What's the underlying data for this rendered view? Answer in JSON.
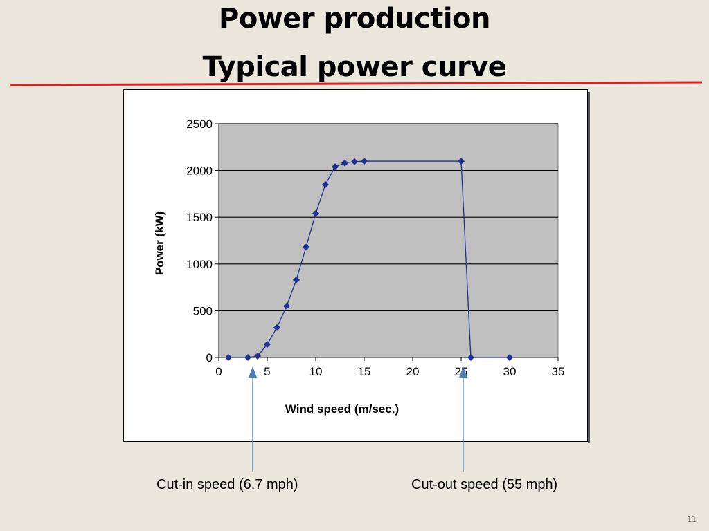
{
  "slide": {
    "title_line1": "Power production",
    "title_line2": "Typical power curve",
    "page_number": "11",
    "accent_color": "#e02020"
  },
  "callouts": {
    "cut_in": "Cut-in speed (6.7 mph)",
    "cut_out": "Cut-out speed (55 mph)",
    "arrow_color": "#4f81bd"
  },
  "chart_data": {
    "type": "line",
    "title": "",
    "xlabel": "Wind speed (m/sec.)",
    "ylabel": "Power (kW)",
    "xlim": [
      0,
      35
    ],
    "ylim": [
      0,
      2500
    ],
    "xticks": [
      0,
      5,
      10,
      15,
      20,
      25,
      30,
      35
    ],
    "yticks": [
      0,
      500,
      1000,
      1500,
      2000,
      2500
    ],
    "grid": "horizontal",
    "plot_background": "#c0c0c0",
    "series": [
      {
        "color": "#1f2f8f",
        "marker": "diamond",
        "x": [
          1,
          3,
          4,
          5,
          6,
          7,
          8,
          9,
          10,
          11,
          12,
          13,
          14,
          15,
          25,
          26,
          30
        ],
        "y": [
          0,
          0,
          15,
          140,
          320,
          550,
          830,
          1180,
          1540,
          1850,
          2040,
          2080,
          2095,
          2100,
          2100,
          0,
          0
        ]
      }
    ]
  }
}
